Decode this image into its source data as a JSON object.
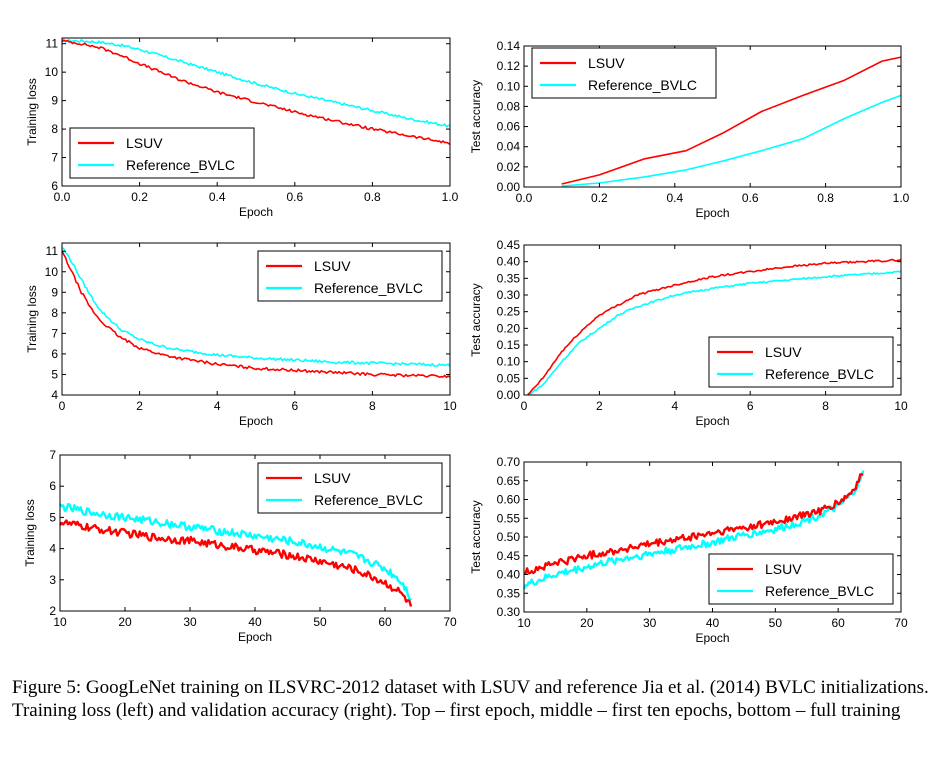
{
  "caption": "Figure 5: GoogLeNet training on ILSVRC-2012 dataset with LSUV and reference Jia et al. (2014) BVLC initializations. Training loss (left) and validation accuracy (right). Top – first epoch, middle – first ten epochs, bottom – full training",
  "colors": {
    "LSUV": "#ff0000",
    "Reference_BVLC": "#00ffff"
  },
  "chart_data": [
    {
      "id": "top-left",
      "type": "line",
      "xlabel": "Epoch",
      "ylabel": "Training loss",
      "xlim": [
        0,
        1
      ],
      "ylim": [
        6,
        11.2
      ],
      "xticks": [
        0,
        0.2,
        0.4,
        0.6,
        0.8,
        1.0
      ],
      "xticklabels": [
        "0.0",
        "0.2",
        "0.4",
        "0.6",
        "0.8",
        "1.0"
      ],
      "yticks": [
        6,
        7,
        8,
        9,
        10,
        11
      ],
      "yticklabels": [
        "6",
        "7",
        "8",
        "9",
        "10",
        "11"
      ],
      "legend": "bottom-left",
      "series": [
        {
          "name": "LSUV",
          "x": [
            0,
            0.05,
            0.1,
            0.15,
            0.2,
            0.3,
            0.4,
            0.5,
            0.6,
            0.7,
            0.8,
            0.9,
            1.0
          ],
          "y": [
            11.1,
            11.0,
            10.85,
            10.6,
            10.3,
            9.75,
            9.3,
            8.95,
            8.6,
            8.3,
            8.0,
            7.75,
            7.5
          ]
        },
        {
          "name": "Reference_BVLC",
          "x": [
            0,
            0.05,
            0.1,
            0.15,
            0.2,
            0.3,
            0.4,
            0.5,
            0.6,
            0.7,
            0.8,
            0.9,
            1.0
          ],
          "y": [
            11.1,
            11.1,
            11.05,
            10.95,
            10.8,
            10.4,
            10.0,
            9.6,
            9.25,
            8.95,
            8.65,
            8.35,
            8.1
          ]
        }
      ]
    },
    {
      "id": "top-right",
      "type": "line",
      "xlabel": "Epoch",
      "ylabel": "Test accuracy",
      "xlim": [
        0,
        1
      ],
      "ylim": [
        0,
        0.14
      ],
      "xticks": [
        0,
        0.2,
        0.4,
        0.6,
        0.8,
        1.0
      ],
      "xticklabels": [
        "0.0",
        "0.2",
        "0.4",
        "0.6",
        "0.8",
        "1.0"
      ],
      "yticks": [
        0,
        0.02,
        0.04,
        0.06,
        0.08,
        0.1,
        0.12,
        0.14
      ],
      "yticklabels": [
        "0.00",
        "0.02",
        "0.04",
        "0.06",
        "0.08",
        "0.10",
        "0.12",
        "0.14"
      ],
      "legend": "top-left",
      "series": [
        {
          "name": "LSUV",
          "x": [
            0.1,
            0.2,
            0.32,
            0.43,
            0.53,
            0.63,
            0.74,
            0.85,
            0.95,
            1.0
          ],
          "y": [
            0.003,
            0.012,
            0.028,
            0.036,
            0.054,
            0.075,
            0.091,
            0.106,
            0.125,
            0.129
          ]
        },
        {
          "name": "Reference_BVLC",
          "x": [
            0.1,
            0.2,
            0.32,
            0.43,
            0.53,
            0.63,
            0.74,
            0.85,
            0.95,
            1.0
          ],
          "y": [
            0.001,
            0.004,
            0.01,
            0.017,
            0.026,
            0.036,
            0.048,
            0.068,
            0.084,
            0.091
          ]
        }
      ]
    },
    {
      "id": "middle-left",
      "type": "line",
      "xlabel": "Epoch",
      "ylabel": "Training loss",
      "xlim": [
        0,
        10
      ],
      "ylim": [
        4,
        11.4
      ],
      "xticks": [
        0,
        2,
        4,
        6,
        8,
        10
      ],
      "xticklabels": [
        "0",
        "2",
        "4",
        "6",
        "8",
        "10"
      ],
      "yticks": [
        4,
        5,
        6,
        7,
        8,
        9,
        10,
        11
      ],
      "yticklabels": [
        "4",
        "5",
        "6",
        "7",
        "8",
        "9",
        "10",
        "11"
      ],
      "legend": "top-right",
      "series": [
        {
          "name": "LSUV",
          "x": [
            0,
            0.25,
            0.5,
            0.75,
            1,
            1.5,
            2,
            2.5,
            3,
            4,
            5,
            6,
            7,
            8,
            9,
            10
          ],
          "y": [
            11.0,
            10.0,
            9.0,
            8.2,
            7.6,
            6.8,
            6.3,
            6.0,
            5.8,
            5.5,
            5.3,
            5.2,
            5.1,
            5.0,
            4.95,
            4.9
          ]
        },
        {
          "name": "Reference_BVLC",
          "x": [
            0,
            0.25,
            0.5,
            0.75,
            1,
            1.5,
            2,
            2.5,
            3,
            4,
            5,
            6,
            7,
            8,
            9,
            10
          ],
          "y": [
            11.2,
            10.5,
            9.6,
            8.8,
            8.1,
            7.2,
            6.7,
            6.4,
            6.2,
            5.95,
            5.8,
            5.7,
            5.6,
            5.55,
            5.5,
            5.45
          ]
        }
      ]
    },
    {
      "id": "middle-right",
      "type": "line",
      "xlabel": "Epoch",
      "ylabel": "Test accuracy",
      "xlim": [
        0,
        10
      ],
      "ylim": [
        0,
        0.45
      ],
      "xticks": [
        0,
        2,
        4,
        6,
        8,
        10
      ],
      "xticklabels": [
        "0",
        "2",
        "4",
        "6",
        "8",
        "10"
      ],
      "yticks": [
        0,
        0.05,
        0.1,
        0.15,
        0.2,
        0.25,
        0.3,
        0.35,
        0.4,
        0.45
      ],
      "yticklabels": [
        "0.00",
        "0.05",
        "0.10",
        "0.15",
        "0.20",
        "0.25",
        "0.30",
        "0.35",
        "0.40",
        "0.45"
      ],
      "legend": "bottom-right",
      "series": [
        {
          "name": "LSUV",
          "x": [
            0.1,
            0.5,
            1,
            1.5,
            2,
            2.5,
            3,
            4,
            5,
            6,
            7,
            8,
            9,
            10
          ],
          "y": [
            0.0,
            0.05,
            0.13,
            0.19,
            0.24,
            0.27,
            0.3,
            0.33,
            0.355,
            0.37,
            0.385,
            0.395,
            0.4,
            0.405
          ]
        },
        {
          "name": "Reference_BVLC",
          "x": [
            0.1,
            0.5,
            1,
            1.5,
            2,
            2.5,
            3,
            4,
            5,
            6,
            7,
            8,
            9,
            10
          ],
          "y": [
            0.0,
            0.03,
            0.1,
            0.16,
            0.2,
            0.24,
            0.265,
            0.3,
            0.32,
            0.335,
            0.345,
            0.355,
            0.362,
            0.37
          ]
        }
      ]
    },
    {
      "id": "bottom-left",
      "type": "line",
      "xlabel": "Epoch",
      "ylabel": "Training loss",
      "xlim": [
        10,
        70
      ],
      "ylim": [
        2,
        7
      ],
      "xticks": [
        10,
        20,
        30,
        40,
        50,
        60,
        70
      ],
      "xticklabels": [
        "10",
        "20",
        "30",
        "40",
        "50",
        "60",
        "70"
      ],
      "yticks": [
        2,
        3,
        4,
        5,
        6,
        7
      ],
      "yticklabels": [
        "2",
        "3",
        "4",
        "5",
        "6",
        "7"
      ],
      "legend": "top-right",
      "series": [
        {
          "name": "LSUV",
          "x": [
            10,
            15,
            20,
            25,
            30,
            35,
            40,
            45,
            50,
            55,
            58,
            60,
            62,
            63,
            64
          ],
          "y": [
            4.85,
            4.65,
            4.5,
            4.35,
            4.25,
            4.1,
            3.95,
            3.8,
            3.6,
            3.35,
            3.1,
            2.9,
            2.65,
            2.45,
            2.15
          ]
        },
        {
          "name": "Reference_BVLC",
          "x": [
            10,
            15,
            20,
            25,
            30,
            35,
            40,
            45,
            50,
            55,
            58,
            60,
            62,
            63,
            64
          ],
          "y": [
            5.35,
            5.15,
            5.0,
            4.85,
            4.7,
            4.55,
            4.4,
            4.25,
            4.05,
            3.8,
            3.55,
            3.35,
            3.05,
            2.8,
            2.4
          ]
        }
      ]
    },
    {
      "id": "bottom-right",
      "type": "line",
      "xlabel": "Epoch",
      "ylabel": "Test accuracy",
      "xlim": [
        10,
        70
      ],
      "ylim": [
        0.3,
        0.7
      ],
      "xticks": [
        10,
        20,
        30,
        40,
        50,
        60,
        70
      ],
      "xticklabels": [
        "10",
        "20",
        "30",
        "40",
        "50",
        "60",
        "70"
      ],
      "yticks": [
        0.3,
        0.35,
        0.4,
        0.45,
        0.5,
        0.55,
        0.6,
        0.65,
        0.7
      ],
      "yticklabels": [
        "0.30",
        "0.35",
        "0.40",
        "0.45",
        "0.50",
        "0.55",
        "0.60",
        "0.65",
        "0.70"
      ],
      "legend": "bottom-right",
      "series": [
        {
          "name": "LSUV",
          "x": [
            10,
            15,
            20,
            25,
            30,
            35,
            40,
            45,
            50,
            55,
            58,
            60,
            62,
            63,
            64
          ],
          "y": [
            0.405,
            0.43,
            0.45,
            0.465,
            0.48,
            0.495,
            0.51,
            0.525,
            0.54,
            0.56,
            0.575,
            0.59,
            0.615,
            0.64,
            0.675
          ]
        },
        {
          "name": "Reference_BVLC",
          "x": [
            10,
            15,
            20,
            25,
            30,
            35,
            40,
            45,
            50,
            55,
            58,
            60,
            62,
            63,
            64
          ],
          "y": [
            0.37,
            0.4,
            0.42,
            0.44,
            0.455,
            0.47,
            0.485,
            0.505,
            0.52,
            0.545,
            0.565,
            0.58,
            0.61,
            0.635,
            0.67
          ]
        }
      ]
    }
  ]
}
